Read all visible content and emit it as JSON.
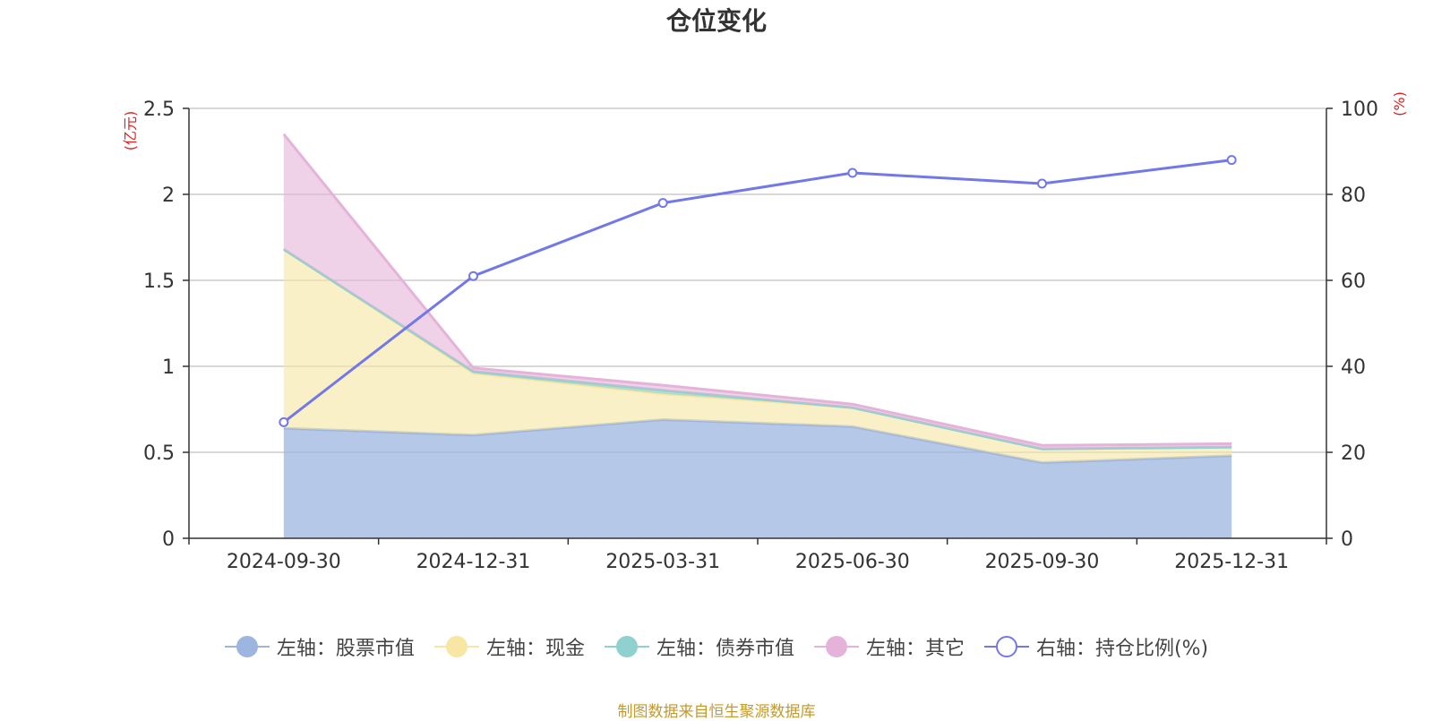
{
  "chart_data": {
    "type": "area",
    "title": "仓位变化",
    "left_axis_unit": "(亿元)",
    "right_axis_unit": "(%)",
    "categories": [
      "2024-09-30",
      "2024-12-31",
      "2025-03-31",
      "2025-06-30",
      "2025-09-30",
      "2025-12-31"
    ],
    "left_ylim": [
      0,
      2.5
    ],
    "left_ticks": [
      "0",
      "0.5",
      "1",
      "1.5",
      "2",
      "2.5"
    ],
    "right_ylim": [
      0,
      100
    ],
    "right_ticks": [
      "0",
      "20",
      "40",
      "60",
      "80",
      "100"
    ],
    "stacked_series": [
      {
        "name": "左轴：股票市值",
        "values": [
          0.64,
          0.6,
          0.69,
          0.65,
          0.44,
          0.48
        ],
        "color": "#9db6e0"
      },
      {
        "name": "左轴：现金",
        "values": [
          1.04,
          0.36,
          0.15,
          0.11,
          0.08,
          0.05
        ],
        "color": "#f7e6a4"
      },
      {
        "name": "左轴：债券市值",
        "values": [
          0.0,
          0.01,
          0.02,
          0.0,
          0.0,
          0.0
        ],
        "color": "#8fd1cf"
      },
      {
        "name": "左轴：其它",
        "values": [
          0.67,
          0.02,
          0.03,
          0.02,
          0.02,
          0.02
        ],
        "color": "#e5b3d9"
      }
    ],
    "line_series": {
      "name": "右轴：持仓比例(%)",
      "values": [
        27.0,
        61.0,
        78.0,
        85.0,
        82.5,
        88.0
      ],
      "color": "#7378e8"
    }
  },
  "legend": [
    {
      "label": "左轴：股票市值",
      "color": "#9db6e0",
      "style": "filled"
    },
    {
      "label": "左轴：现金",
      "color": "#f7e6a4",
      "style": "filled"
    },
    {
      "label": "左轴：债券市值",
      "color": "#8fd1cf",
      "style": "filled"
    },
    {
      "label": "左轴：其它",
      "color": "#e5b3d9",
      "style": "filled"
    },
    {
      "label": "右轴：持仓比例(%)",
      "color": "#7378e8",
      "style": "hollow"
    }
  ],
  "source": "制图数据来自恒生聚源数据库"
}
